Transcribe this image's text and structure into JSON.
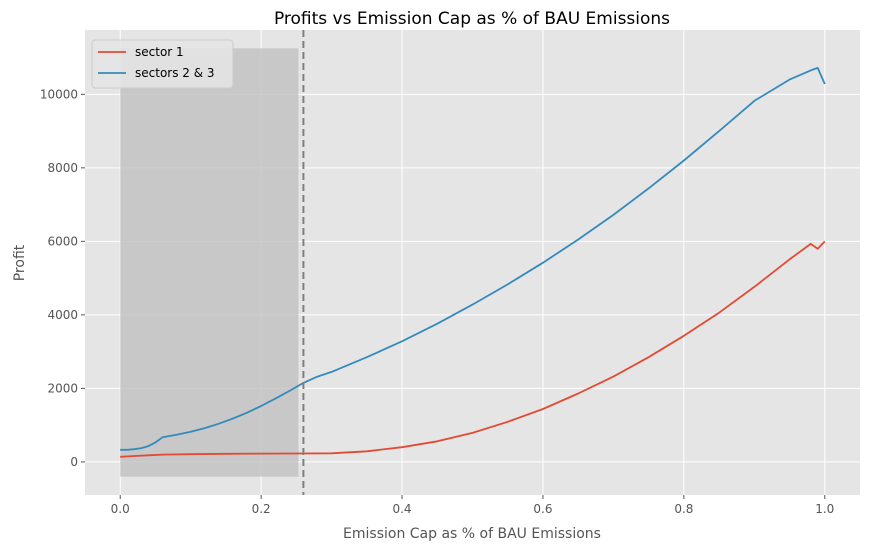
{
  "chart_data": {
    "type": "line",
    "title": "Profits vs Emission Cap as % of BAU Emissions",
    "xlabel": "Emission Cap as % of BAU Emissions",
    "ylabel": "Profit",
    "xlim": [
      -0.05,
      1.05
    ],
    "ylim": [
      -900,
      11750
    ],
    "xticks": [
      0.0,
      0.2,
      0.4,
      0.6,
      0.8,
      1.0
    ],
    "xtick_labels": [
      "0.0",
      "0.2",
      "0.4",
      "0.6",
      "0.8",
      "1.0"
    ],
    "yticks": [
      0,
      2000,
      4000,
      6000,
      8000,
      10000
    ],
    "ytick_labels": [
      "0",
      "2000",
      "4000",
      "6000",
      "8000",
      "10000"
    ],
    "grid": true,
    "legend_position": "top-left",
    "shaded_region": {
      "x": [
        0.0,
        0.253
      ],
      "y": [
        -400,
        11250
      ]
    },
    "vline": {
      "x": 0.26,
      "style": "dashed"
    },
    "series": [
      {
        "name": "sector 1",
        "color": "#e24a33",
        "x": [
          0.0,
          0.02,
          0.04,
          0.06,
          0.1,
          0.15,
          0.2,
          0.25,
          0.3,
          0.35,
          0.4,
          0.45,
          0.5,
          0.55,
          0.6,
          0.65,
          0.7,
          0.75,
          0.8,
          0.85,
          0.9,
          0.95,
          0.98,
          0.99,
          1.0
        ],
        "values": [
          140,
          160,
          180,
          200,
          210,
          220,
          225,
          230,
          235,
          290,
          400,
          560,
          790,
          1090,
          1440,
          1860,
          2320,
          2850,
          3430,
          4060,
          4760,
          5510,
          5930,
          5800,
          6000
        ]
      },
      {
        "name": "sectors 2 & 3",
        "color": "#348abd",
        "x": [
          0.0,
          0.01,
          0.02,
          0.03,
          0.04,
          0.05,
          0.06,
          0.08,
          0.1,
          0.12,
          0.14,
          0.16,
          0.18,
          0.2,
          0.22,
          0.24,
          0.26,
          0.28,
          0.3,
          0.35,
          0.4,
          0.45,
          0.5,
          0.55,
          0.6,
          0.65,
          0.7,
          0.75,
          0.8,
          0.85,
          0.9,
          0.95,
          0.98,
          0.99,
          1.0
        ],
        "values": [
          330,
          330,
          345,
          375,
          430,
          530,
          670,
          740,
          820,
          920,
          1040,
          1180,
          1340,
          1520,
          1720,
          1930,
          2150,
          2320,
          2450,
          2850,
          3280,
          3760,
          4280,
          4830,
          5420,
          6050,
          6720,
          7440,
          8200,
          9000,
          9820,
          10400,
          10650,
          10720,
          10280
        ]
      }
    ]
  }
}
